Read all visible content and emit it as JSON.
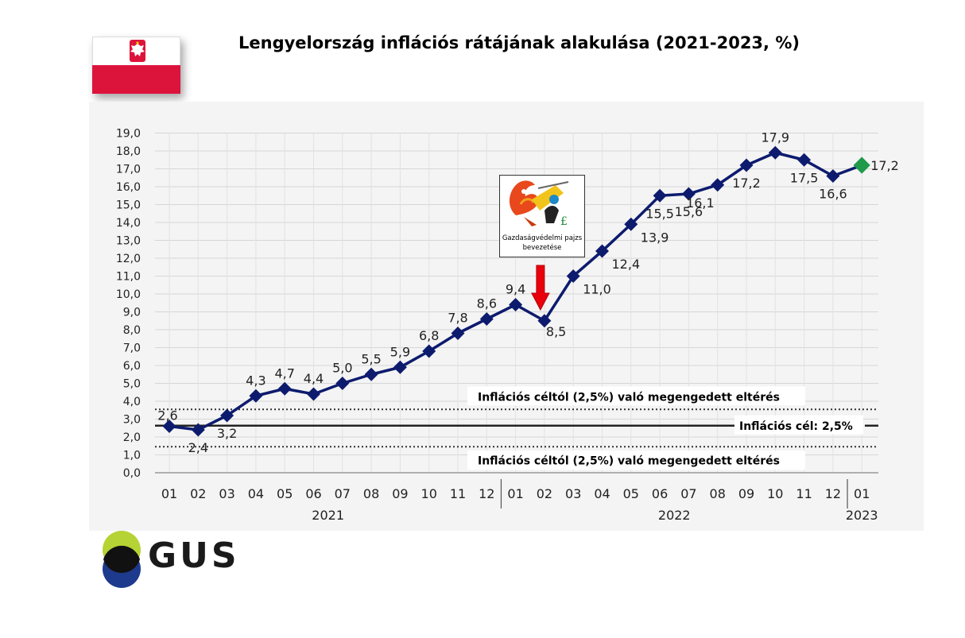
{
  "title": "Lengyelország inflációs rátájának alakulása (2021-2023, %)",
  "logo": {
    "name": "GUS",
    "colors": [
      "#b5d334",
      "#1e3a8c",
      "#111111"
    ]
  },
  "flag": {
    "colors": [
      "#ffffff",
      "#dc143c"
    ],
    "emblem": "white-eagle-icon"
  },
  "annotation": {
    "caption_line1": "Gazdaságvédelmi pajzs",
    "caption_line2": "bevezetése",
    "icon": "dragon-shield-cartoon-icon",
    "arrow_color": "#e8000b",
    "at_month_index": 13
  },
  "reference_lines": {
    "target_label": "Inflációs cél: 2,5%",
    "upper_label": "Inflációs céltól (2,5%) való megengedett eltérés",
    "lower_label": "Inflációs céltól (2,5%) való megengedett eltérés",
    "target_value": 2.5,
    "upper_value": 3.5,
    "lower_value": 1.5
  },
  "chart_data": {
    "type": "line",
    "y_tick_labels": [
      "0,0",
      "1,0",
      "2,0",
      "3,0",
      "4,0",
      "5,0",
      "6,0",
      "7,0",
      "8,0",
      "9,0",
      "10,0",
      "11,0",
      "12,0",
      "13,0",
      "14,0",
      "15,0",
      "16,0",
      "17,0",
      "18,0",
      "19,0"
    ],
    "ylim": [
      0,
      19
    ],
    "categories": [
      "01",
      "02",
      "03",
      "04",
      "05",
      "06",
      "07",
      "08",
      "09",
      "10",
      "11",
      "12",
      "01",
      "02",
      "03",
      "04",
      "05",
      "06",
      "07",
      "08",
      "09",
      "10",
      "11",
      "12",
      "01"
    ],
    "year_labels": [
      {
        "label": "2021",
        "start": 0,
        "end": 11
      },
      {
        "label": "2022",
        "start": 12,
        "end": 23
      },
      {
        "label": "2023",
        "start": 24,
        "end": 24
      }
    ],
    "values": [
      2.6,
      2.4,
      3.2,
      4.3,
      4.7,
      4.4,
      5.0,
      5.5,
      5.9,
      6.8,
      7.8,
      8.6,
      9.4,
      8.5,
      11.0,
      12.4,
      13.9,
      15.5,
      15.6,
      16.1,
      17.2,
      17.9,
      17.5,
      16.6,
      17.2
    ],
    "value_labels": [
      "2,6",
      "2,4",
      "3,2",
      "4,3",
      "4,7",
      "4,4",
      "5,0",
      "5,5",
      "5,9",
      "6,8",
      "7,8",
      "8,6",
      "9,4",
      "8,5",
      "11,0",
      "12,4",
      "13,9",
      "15,5",
      "15,6",
      "16,1",
      "17,2",
      "17,9",
      "17,5",
      "16,6",
      "17,2"
    ],
    "line_color": "#0d1b6e",
    "last_point_color": "#1f9a4a",
    "grid": true
  }
}
